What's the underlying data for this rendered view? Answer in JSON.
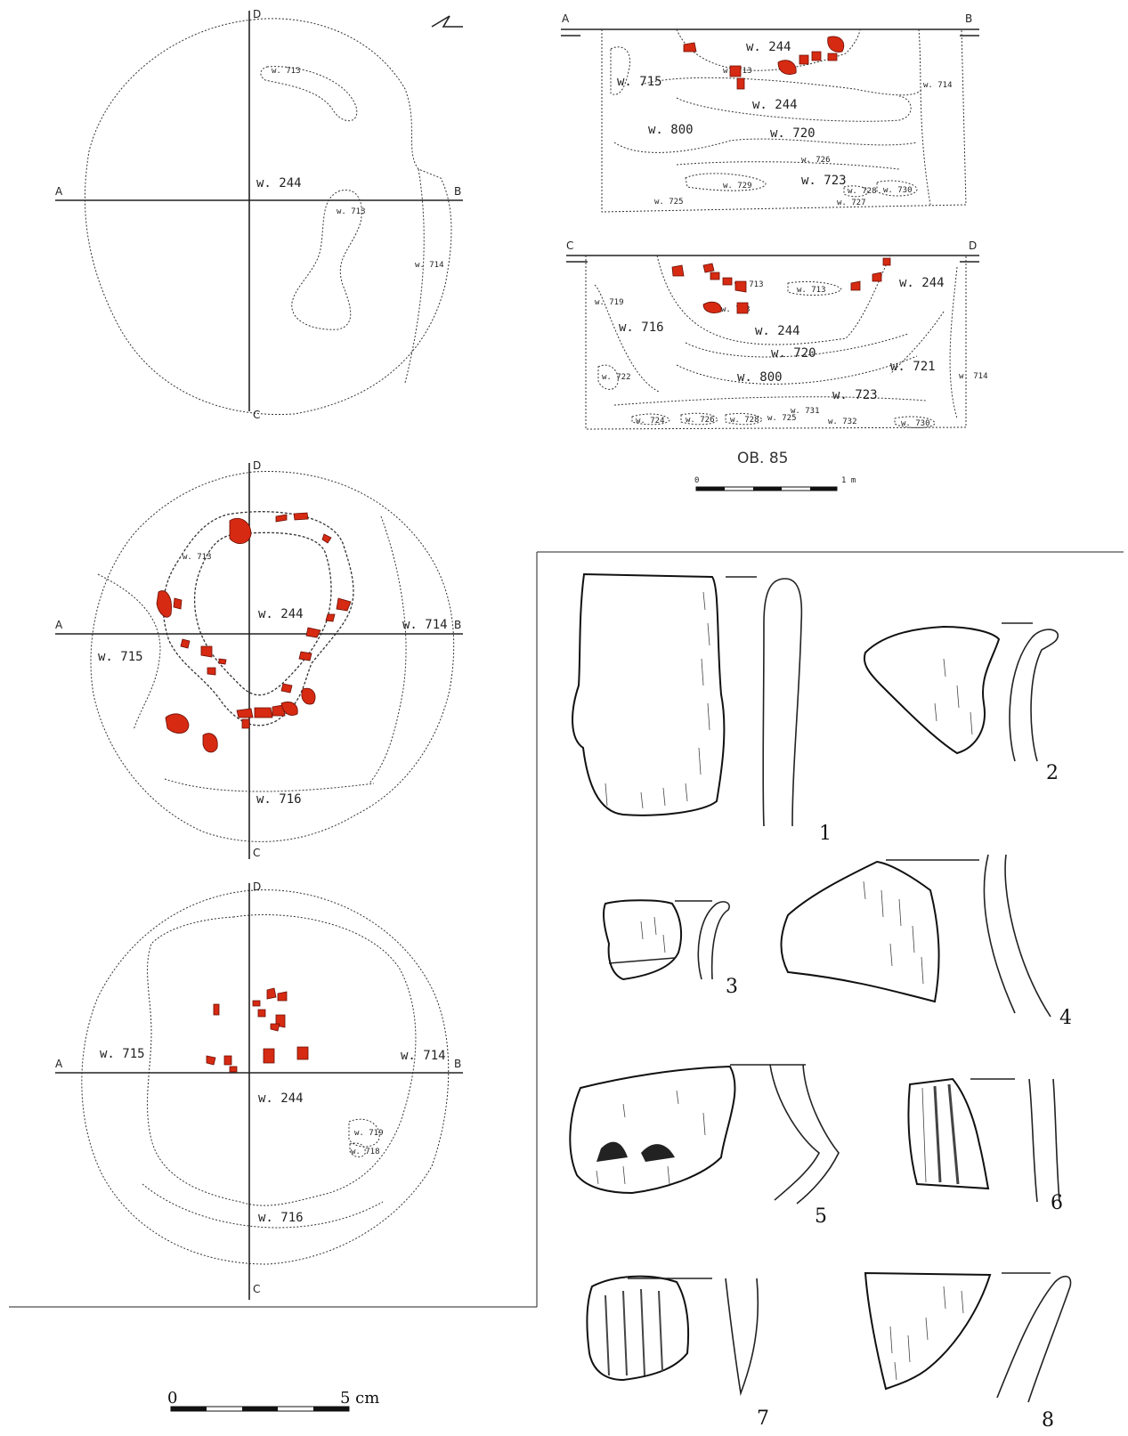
{
  "plan1": {
    "d": "D",
    "c": "C",
    "a": "A",
    "b": "B",
    "w244": "w. 244",
    "w714": "w. 714",
    "w713a": "w. 713",
    "w713b": "w. 713"
  },
  "plan2": {
    "d": "D",
    "c": "C",
    "a": "A",
    "b": "B",
    "w244": "w. 244",
    "w714": "w. 714",
    "w715": "w. 715",
    "w716": "w. 716",
    "w713": "w. 713"
  },
  "plan3": {
    "d": "D",
    "c": "C",
    "a": "A",
    "b": "B",
    "w244": "w. 244",
    "w714": "w. 714",
    "w715": "w. 715",
    "w716": "w. 716",
    "w719": "w. 719",
    "w718": "w. 718"
  },
  "section_ab": {
    "a": "A",
    "b": "B",
    "w244a": "w. 244",
    "w244b": "w. 244",
    "w715": "w. 715",
    "w714": "w. 714",
    "w800": "w. 800",
    "w720": "w. 720",
    "w723": "w. 723",
    "w729": "w. 729",
    "w730": "w. 730",
    "w728": "w. 728",
    "w726": "w. 726",
    "w713": "w. 713",
    "w725": "w. 725",
    "w727": "w. 727"
  },
  "section_cd": {
    "c": "C",
    "d": "D",
    "w716": "w. 716",
    "w244a": "w. 244",
    "w244b": "w. 244",
    "w720": "w. 720",
    "w800": "w. 800",
    "w721": "w. 721",
    "w714": "w. 714",
    "w723": "w. 723",
    "w719": "w. 719",
    "w722": "w. 722",
    "w713a": "w. 713",
    "w713b": "w. 713",
    "w713c": "w. 713",
    "w724": "w. 724",
    "w726": "w. 726",
    "w728": "w. 728",
    "w730": "w. 730",
    "w725": "w. 725",
    "w731": "w. 731",
    "w732": "w. 732"
  },
  "object_label": "OB. 85",
  "scale_section": {
    "zero": "0",
    "end": "1 m"
  },
  "scale_finds": {
    "zero": "0",
    "end": "5 cm"
  },
  "finds": [
    "1",
    "2",
    "3",
    "4",
    "5",
    "6",
    "7",
    "8"
  ],
  "colors": {
    "stone": "#d62a12",
    "line": "#222222"
  }
}
